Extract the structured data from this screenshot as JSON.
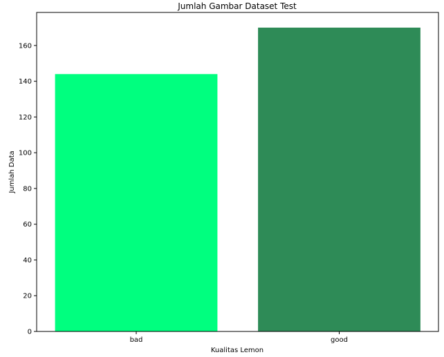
{
  "chart_data": {
    "type": "bar",
    "title": "Jumlah Gambar Dataset Test",
    "xlabel": "Kualitas Lemon",
    "ylabel": "Jumlah Data",
    "categories": [
      "bad",
      "good"
    ],
    "values": [
      144,
      170
    ],
    "colors": [
      "#00ff7f",
      "#2e8b57"
    ],
    "ylim": [
      0,
      178.5
    ],
    "yticks": [
      0,
      20,
      40,
      60,
      80,
      100,
      120,
      140,
      160
    ],
    "grid": false,
    "legend": "none"
  }
}
